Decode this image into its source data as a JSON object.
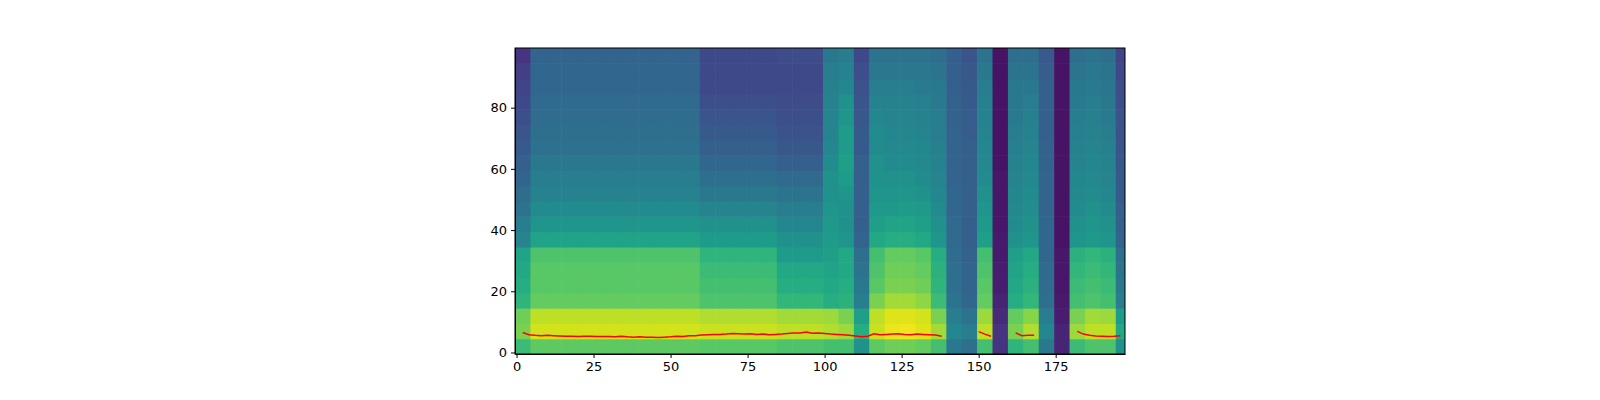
{
  "chart_data": {
    "type": "heatmap",
    "xlim": [
      -0.5,
      197.5
    ],
    "ylim": [
      -0.5,
      99.5
    ],
    "xticks": [
      0,
      25,
      50,
      75,
      100,
      125,
      150,
      175
    ],
    "yticks": [
      0,
      20,
      40,
      60,
      80
    ],
    "color_range": [
      0,
      1
    ],
    "x": [
      2,
      7,
      12,
      17,
      22,
      27,
      32,
      37,
      42,
      47,
      52,
      57,
      62,
      67,
      72,
      77,
      82,
      87,
      92,
      97,
      102,
      107,
      112,
      117,
      122,
      127,
      132,
      137,
      142,
      147,
      152,
      157,
      162,
      167,
      172,
      177,
      182,
      187,
      192,
      197
    ],
    "y": [
      2,
      7,
      12,
      17,
      22,
      27,
      32,
      37,
      42,
      47,
      52,
      57,
      62,
      67,
      72,
      77,
      82,
      87,
      92,
      97
    ],
    "cells": [
      [
        0.68,
        0.75,
        0.75,
        0.75,
        0.75,
        0.75,
        0.75,
        0.75,
        0.75,
        0.75,
        0.75,
        0.75,
        0.74,
        0.74,
        0.74,
        0.74,
        0.74,
        0.72,
        0.72,
        0.72,
        0.7,
        0.7,
        0.5,
        0.75,
        0.78,
        0.78,
        0.76,
        0.7,
        0.4,
        0.36,
        0.7,
        0.15,
        0.65,
        0.7,
        0.4,
        0.1,
        0.68,
        0.72,
        0.72,
        0.5
      ],
      [
        0.8,
        0.93,
        0.93,
        0.93,
        0.93,
        0.93,
        0.93,
        0.93,
        0.93,
        0.93,
        0.93,
        0.93,
        0.92,
        0.92,
        0.92,
        0.92,
        0.92,
        0.9,
        0.9,
        0.9,
        0.88,
        0.85,
        0.62,
        0.92,
        0.97,
        0.98,
        0.95,
        0.86,
        0.46,
        0.42,
        0.9,
        0.15,
        0.8,
        0.88,
        0.46,
        0.1,
        0.85,
        0.9,
        0.9,
        0.6
      ],
      [
        0.78,
        0.9,
        0.9,
        0.9,
        0.9,
        0.9,
        0.9,
        0.9,
        0.9,
        0.9,
        0.9,
        0.9,
        0.88,
        0.88,
        0.88,
        0.88,
        0.88,
        0.86,
        0.86,
        0.86,
        0.85,
        0.8,
        0.56,
        0.9,
        0.95,
        0.95,
        0.93,
        0.8,
        0.42,
        0.38,
        0.85,
        0.12,
        0.76,
        0.82,
        0.42,
        0.08,
        0.8,
        0.86,
        0.85,
        0.55
      ],
      [
        0.65,
        0.76,
        0.76,
        0.76,
        0.76,
        0.76,
        0.76,
        0.76,
        0.76,
        0.76,
        0.76,
        0.76,
        0.72,
        0.72,
        0.72,
        0.72,
        0.72,
        0.66,
        0.66,
        0.66,
        0.62,
        0.64,
        0.42,
        0.8,
        0.86,
        0.86,
        0.83,
        0.68,
        0.38,
        0.33,
        0.76,
        0.1,
        0.62,
        0.66,
        0.36,
        0.07,
        0.7,
        0.72,
        0.7,
        0.42
      ],
      [
        0.62,
        0.74,
        0.74,
        0.74,
        0.74,
        0.74,
        0.74,
        0.74,
        0.74,
        0.74,
        0.74,
        0.74,
        0.7,
        0.7,
        0.7,
        0.7,
        0.7,
        0.62,
        0.62,
        0.62,
        0.6,
        0.62,
        0.4,
        0.74,
        0.8,
        0.8,
        0.78,
        0.65,
        0.36,
        0.32,
        0.74,
        0.08,
        0.6,
        0.64,
        0.35,
        0.06,
        0.68,
        0.7,
        0.68,
        0.4
      ],
      [
        0.6,
        0.74,
        0.74,
        0.74,
        0.74,
        0.74,
        0.74,
        0.74,
        0.74,
        0.74,
        0.74,
        0.74,
        0.68,
        0.68,
        0.68,
        0.68,
        0.68,
        0.6,
        0.6,
        0.6,
        0.58,
        0.6,
        0.38,
        0.72,
        0.78,
        0.78,
        0.76,
        0.64,
        0.36,
        0.32,
        0.72,
        0.08,
        0.58,
        0.62,
        0.34,
        0.06,
        0.66,
        0.68,
        0.66,
        0.38
      ],
      [
        0.58,
        0.72,
        0.72,
        0.72,
        0.72,
        0.72,
        0.72,
        0.72,
        0.72,
        0.72,
        0.72,
        0.72,
        0.65,
        0.65,
        0.65,
        0.65,
        0.65,
        0.55,
        0.55,
        0.55,
        0.56,
        0.6,
        0.36,
        0.7,
        0.76,
        0.76,
        0.74,
        0.62,
        0.35,
        0.31,
        0.7,
        0.07,
        0.56,
        0.6,
        0.33,
        0.06,
        0.64,
        0.66,
        0.64,
        0.36
      ],
      [
        0.45,
        0.58,
        0.58,
        0.58,
        0.58,
        0.58,
        0.58,
        0.58,
        0.58,
        0.58,
        0.58,
        0.58,
        0.55,
        0.55,
        0.55,
        0.55,
        0.55,
        0.5,
        0.5,
        0.5,
        0.55,
        0.52,
        0.32,
        0.6,
        0.62,
        0.62,
        0.6,
        0.52,
        0.34,
        0.3,
        0.56,
        0.07,
        0.5,
        0.52,
        0.33,
        0.05,
        0.52,
        0.54,
        0.52,
        0.32
      ],
      [
        0.42,
        0.52,
        0.52,
        0.52,
        0.52,
        0.52,
        0.52,
        0.52,
        0.52,
        0.52,
        0.52,
        0.52,
        0.5,
        0.5,
        0.5,
        0.5,
        0.5,
        0.46,
        0.46,
        0.46,
        0.54,
        0.5,
        0.3,
        0.56,
        0.58,
        0.58,
        0.56,
        0.5,
        0.34,
        0.3,
        0.54,
        0.06,
        0.48,
        0.5,
        0.33,
        0.05,
        0.5,
        0.52,
        0.5,
        0.3
      ],
      [
        0.38,
        0.48,
        0.48,
        0.48,
        0.48,
        0.48,
        0.48,
        0.48,
        0.48,
        0.48,
        0.48,
        0.48,
        0.45,
        0.45,
        0.45,
        0.45,
        0.45,
        0.42,
        0.42,
        0.42,
        0.52,
        0.5,
        0.3,
        0.54,
        0.54,
        0.55,
        0.54,
        0.48,
        0.33,
        0.3,
        0.52,
        0.06,
        0.47,
        0.49,
        0.32,
        0.05,
        0.48,
        0.5,
        0.48,
        0.3
      ],
      [
        0.35,
        0.44,
        0.44,
        0.44,
        0.44,
        0.44,
        0.44,
        0.44,
        0.44,
        0.44,
        0.44,
        0.44,
        0.4,
        0.4,
        0.4,
        0.4,
        0.4,
        0.38,
        0.38,
        0.38,
        0.5,
        0.52,
        0.3,
        0.52,
        0.52,
        0.52,
        0.5,
        0.46,
        0.33,
        0.3,
        0.5,
        0.06,
        0.46,
        0.48,
        0.32,
        0.05,
        0.47,
        0.48,
        0.46,
        0.28
      ],
      [
        0.32,
        0.42,
        0.42,
        0.42,
        0.42,
        0.42,
        0.42,
        0.42,
        0.42,
        0.42,
        0.42,
        0.42,
        0.36,
        0.36,
        0.36,
        0.36,
        0.36,
        0.34,
        0.34,
        0.34,
        0.5,
        0.55,
        0.3,
        0.5,
        0.5,
        0.5,
        0.48,
        0.45,
        0.32,
        0.3,
        0.48,
        0.06,
        0.45,
        0.47,
        0.32,
        0.05,
        0.46,
        0.47,
        0.45,
        0.28
      ],
      [
        0.3,
        0.4,
        0.4,
        0.4,
        0.4,
        0.4,
        0.4,
        0.4,
        0.4,
        0.4,
        0.4,
        0.4,
        0.33,
        0.33,
        0.33,
        0.33,
        0.33,
        0.3,
        0.3,
        0.3,
        0.48,
        0.56,
        0.3,
        0.5,
        0.48,
        0.48,
        0.47,
        0.44,
        0.32,
        0.3,
        0.47,
        0.05,
        0.44,
        0.46,
        0.31,
        0.05,
        0.45,
        0.46,
        0.44,
        0.27
      ],
      [
        0.28,
        0.37,
        0.37,
        0.37,
        0.37,
        0.37,
        0.37,
        0.37,
        0.37,
        0.37,
        0.37,
        0.37,
        0.3,
        0.3,
        0.3,
        0.3,
        0.3,
        0.27,
        0.27,
        0.27,
        0.46,
        0.55,
        0.28,
        0.48,
        0.47,
        0.47,
        0.46,
        0.43,
        0.32,
        0.3,
        0.46,
        0.05,
        0.43,
        0.45,
        0.31,
        0.05,
        0.44,
        0.45,
        0.43,
        0.26
      ],
      [
        0.26,
        0.36,
        0.36,
        0.36,
        0.36,
        0.36,
        0.36,
        0.36,
        0.36,
        0.36,
        0.36,
        0.36,
        0.28,
        0.28,
        0.28,
        0.28,
        0.28,
        0.25,
        0.25,
        0.25,
        0.45,
        0.55,
        0.28,
        0.48,
        0.46,
        0.46,
        0.45,
        0.42,
        0.32,
        0.29,
        0.45,
        0.05,
        0.42,
        0.44,
        0.3,
        0.05,
        0.43,
        0.44,
        0.42,
        0.25
      ],
      [
        0.24,
        0.35,
        0.35,
        0.35,
        0.35,
        0.35,
        0.35,
        0.35,
        0.35,
        0.35,
        0.35,
        0.35,
        0.26,
        0.26,
        0.26,
        0.26,
        0.26,
        0.24,
        0.24,
        0.24,
        0.45,
        0.52,
        0.27,
        0.46,
        0.45,
        0.45,
        0.44,
        0.42,
        0.31,
        0.29,
        0.44,
        0.05,
        0.41,
        0.43,
        0.3,
        0.05,
        0.42,
        0.43,
        0.41,
        0.25
      ],
      [
        0.22,
        0.34,
        0.34,
        0.34,
        0.34,
        0.34,
        0.34,
        0.34,
        0.34,
        0.34,
        0.34,
        0.34,
        0.24,
        0.24,
        0.24,
        0.24,
        0.24,
        0.23,
        0.23,
        0.23,
        0.44,
        0.5,
        0.26,
        0.44,
        0.44,
        0.44,
        0.43,
        0.41,
        0.31,
        0.28,
        0.43,
        0.05,
        0.4,
        0.42,
        0.3,
        0.05,
        0.41,
        0.42,
        0.4,
        0.24
      ],
      [
        0.2,
        0.33,
        0.33,
        0.33,
        0.33,
        0.33,
        0.33,
        0.33,
        0.33,
        0.33,
        0.33,
        0.33,
        0.22,
        0.22,
        0.22,
        0.22,
        0.22,
        0.22,
        0.22,
        0.22,
        0.43,
        0.46,
        0.25,
        0.42,
        0.42,
        0.42,
        0.41,
        0.4,
        0.3,
        0.28,
        0.42,
        0.05,
        0.4,
        0.4,
        0.3,
        0.05,
        0.4,
        0.41,
        0.39,
        0.23
      ],
      [
        0.18,
        0.33,
        0.33,
        0.33,
        0.33,
        0.33,
        0.33,
        0.33,
        0.33,
        0.33,
        0.33,
        0.33,
        0.22,
        0.22,
        0.22,
        0.22,
        0.22,
        0.22,
        0.22,
        0.22,
        0.42,
        0.44,
        0.24,
        0.4,
        0.4,
        0.4,
        0.4,
        0.38,
        0.3,
        0.27,
        0.4,
        0.05,
        0.38,
        0.38,
        0.29,
        0.05,
        0.38,
        0.4,
        0.38,
        0.22
      ],
      [
        0.15,
        0.32,
        0.32,
        0.32,
        0.32,
        0.32,
        0.32,
        0.32,
        0.32,
        0.32,
        0.32,
        0.32,
        0.22,
        0.22,
        0.22,
        0.22,
        0.22,
        0.23,
        0.23,
        0.23,
        0.4,
        0.42,
        0.22,
        0.38,
        0.38,
        0.38,
        0.38,
        0.36,
        0.3,
        0.26,
        0.38,
        0.05,
        0.36,
        0.36,
        0.28,
        0.05,
        0.36,
        0.38,
        0.36,
        0.2
      ]
    ],
    "series": [
      {
        "type": "line",
        "color": "red",
        "x": [
          2,
          4,
          6,
          8,
          10,
          12,
          14,
          16,
          18,
          20,
          22,
          24,
          26,
          28,
          30,
          32,
          34,
          36,
          38,
          40,
          42,
          44,
          46,
          48,
          50,
          52,
          54,
          56,
          58,
          60,
          62,
          64,
          66,
          68,
          70,
          72,
          74,
          76,
          78,
          80,
          82,
          84,
          86,
          88,
          90,
          92,
          94,
          96,
          98,
          100,
          102,
          104,
          106,
          108,
          110,
          112,
          114,
          116,
          118,
          120,
          122,
          124,
          126,
          128,
          130,
          132,
          134,
          136,
          138,
          140,
          142,
          144,
          146,
          148,
          150,
          152,
          154,
          156,
          158,
          160,
          162,
          164,
          166,
          168,
          170,
          172,
          174,
          176,
          178,
          180,
          182,
          184,
          186,
          188,
          190,
          192,
          194,
          196
        ],
        "values": [
          6.5,
          5.8,
          5.6,
          5.5,
          5.6,
          5.5,
          5.4,
          5.3,
          5.3,
          5.2,
          5.3,
          5.3,
          5.2,
          5.2,
          5.2,
          5.1,
          5.3,
          5.1,
          5.0,
          5.1,
          5.0,
          5.0,
          4.9,
          5.0,
          5.1,
          5.3,
          5.2,
          5.5,
          5.5,
          5.7,
          5.8,
          5.9,
          5.9,
          6.0,
          6.2,
          6.1,
          6.0,
          6.1,
          5.9,
          6.0,
          5.8,
          5.9,
          6.0,
          6.2,
          6.4,
          6.4,
          6.7,
          6.3,
          6.4,
          6.2,
          6.0,
          5.9,
          5.8,
          5.6,
          5.4,
          5.1,
          5.3,
          6.1,
          5.8,
          5.9,
          6.0,
          6.1,
          5.9,
          5.8,
          6.0,
          5.9,
          5.8,
          5.7,
          5.3,
          null,
          null,
          null,
          null,
          null,
          6.8,
          6.0,
          5.3,
          null,
          null,
          null,
          6.4,
          5.5,
          5.6,
          5.6,
          null,
          null,
          null,
          null,
          null,
          null,
          6.9,
          6.0,
          5.6,
          5.4,
          5.3,
          5.2,
          5.3,
          5.5
        ]
      }
    ]
  }
}
